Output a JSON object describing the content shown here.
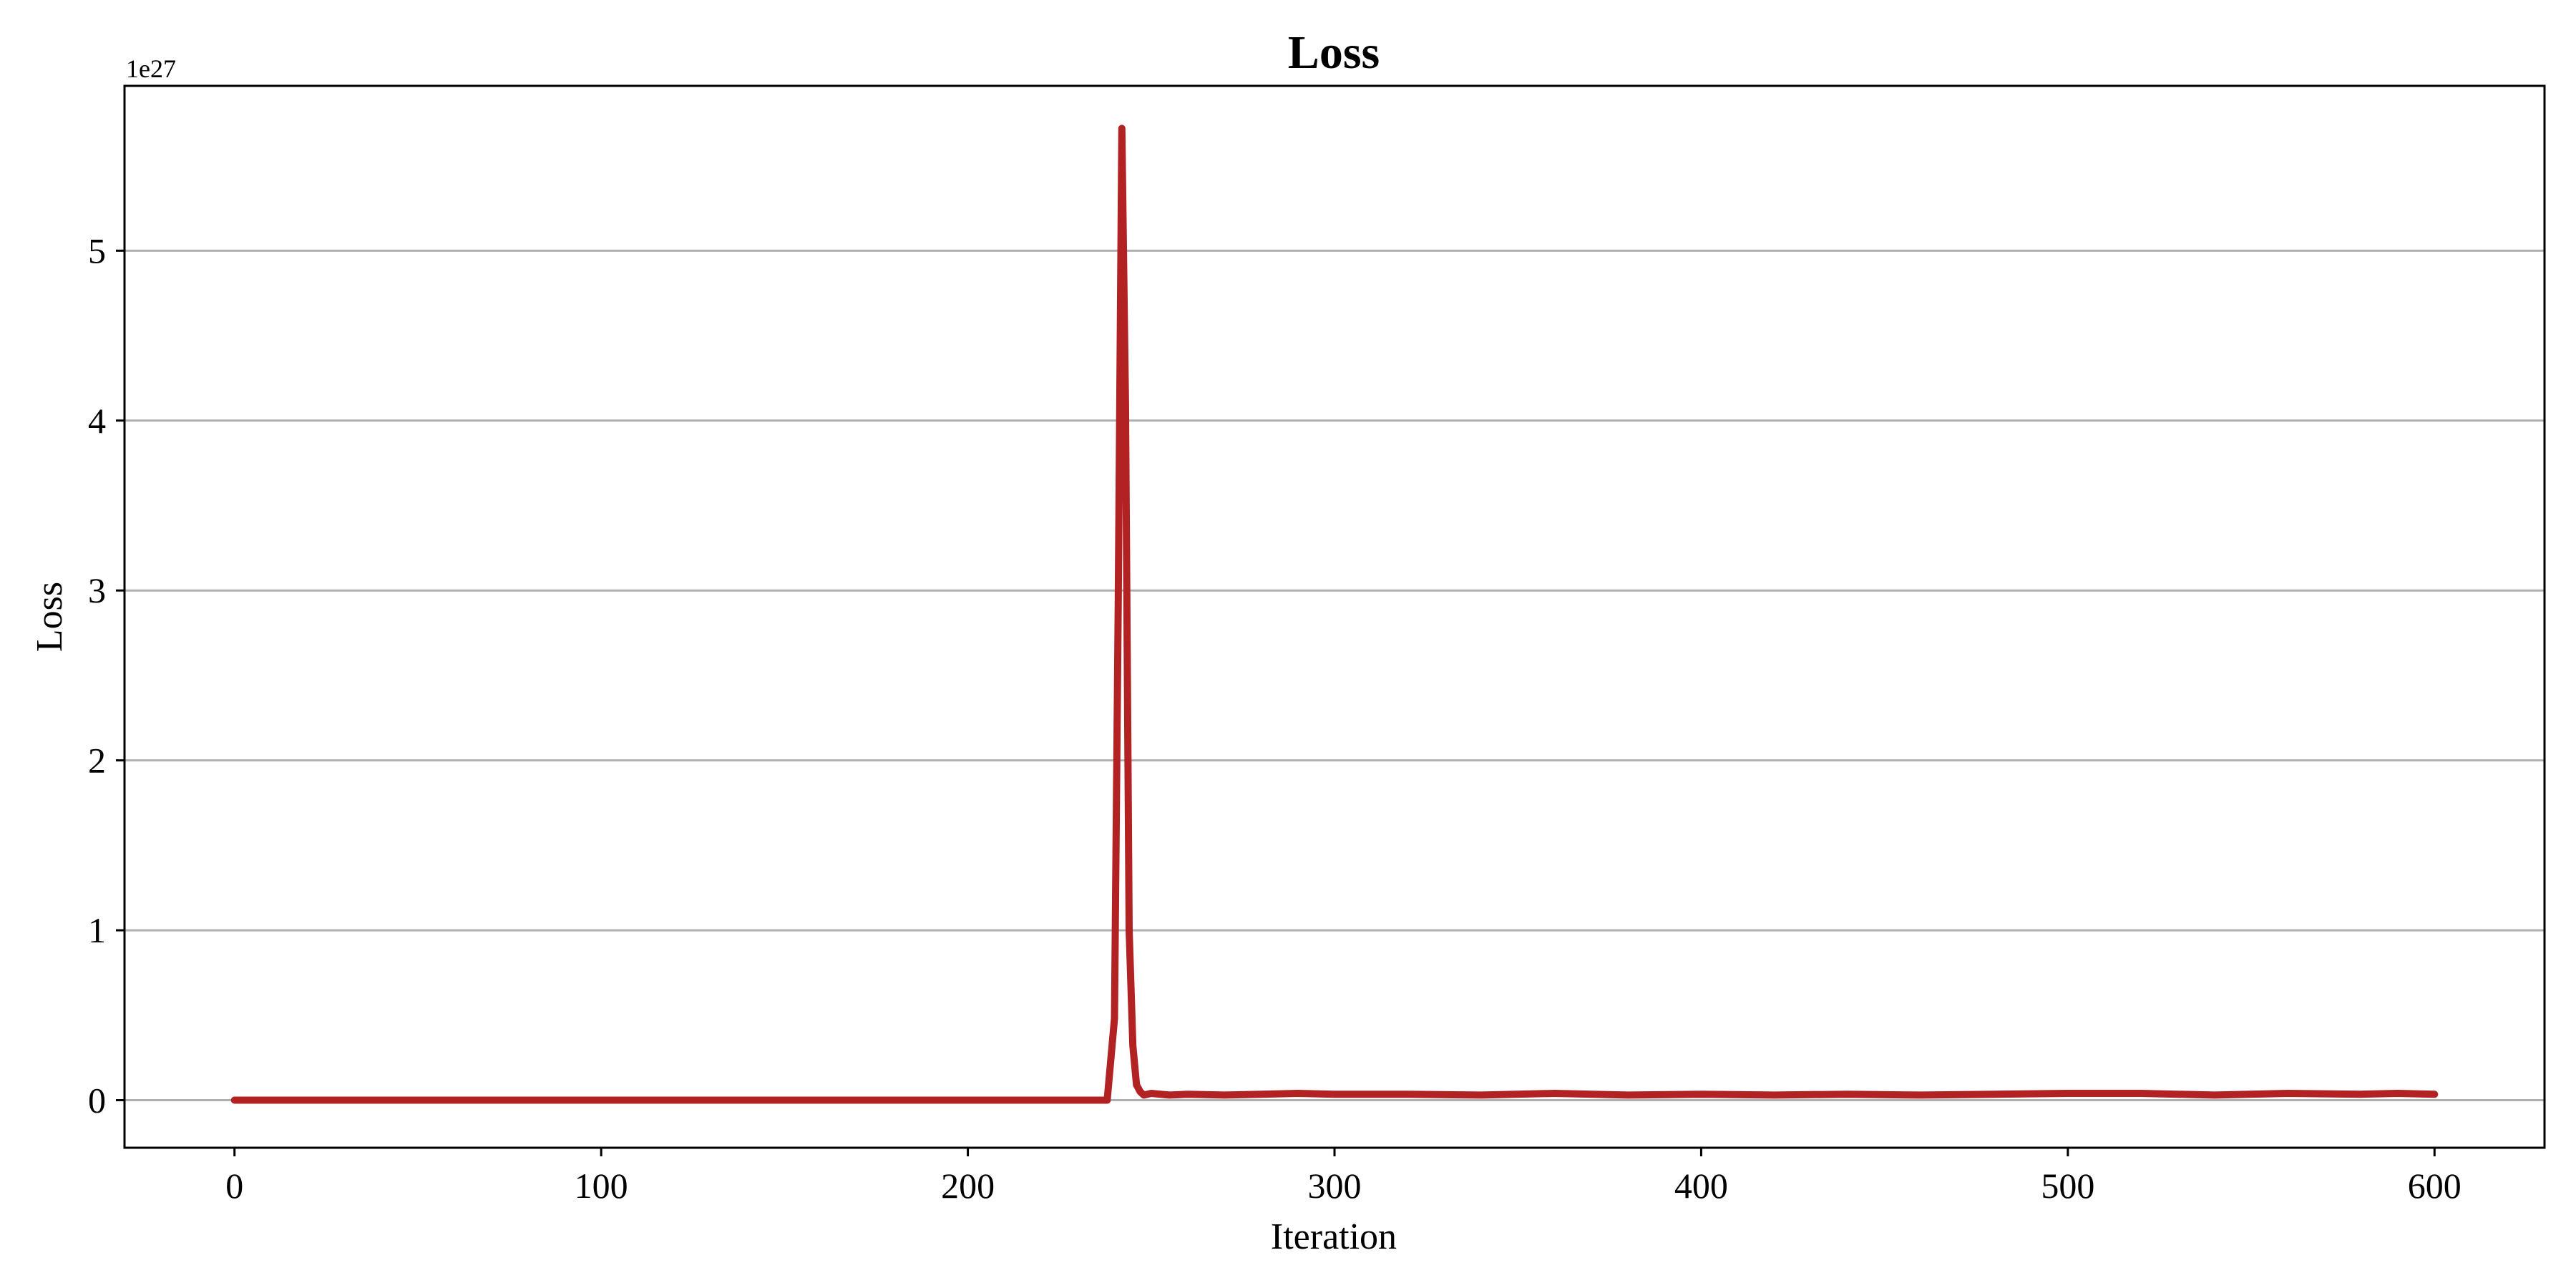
{
  "chart_data": {
    "type": "line",
    "title": "Loss",
    "xlabel": "Iteration",
    "ylabel": "Loss",
    "y_offset_text": "1e27",
    "y_scale": 1e+27,
    "xlim": [
      -30,
      630
    ],
    "ylim": [
      -0.28,
      5.97
    ],
    "x_ticks": [
      0,
      100,
      200,
      300,
      400,
      500,
      600
    ],
    "y_ticks": [
      0,
      1,
      2,
      3,
      4,
      5
    ],
    "grid": {
      "x": false,
      "y": true
    },
    "line_color": "#b22222",
    "series": [
      {
        "x": [
          0,
          100,
          200,
          238,
          240,
          241,
          242,
          243,
          244,
          245,
          246,
          247,
          248,
          250,
          255,
          260,
          270,
          280,
          290,
          300,
          320,
          340,
          360,
          380,
          400,
          420,
          440,
          460,
          480,
          500,
          520,
          540,
          560,
          580,
          590,
          600
        ],
        "values": [
          0,
          0,
          0,
          0,
          0.48,
          2.9,
          5.72,
          4.1,
          1.0,
          0.32,
          0.09,
          0.05,
          0.03,
          0.04,
          0.03,
          0.035,
          0.03,
          0.035,
          0.04,
          0.035,
          0.035,
          0.03,
          0.04,
          0.03,
          0.035,
          0.03,
          0.035,
          0.03,
          0.035,
          0.04,
          0.04,
          0.03,
          0.04,
          0.035,
          0.04,
          0.035
        ]
      }
    ]
  }
}
